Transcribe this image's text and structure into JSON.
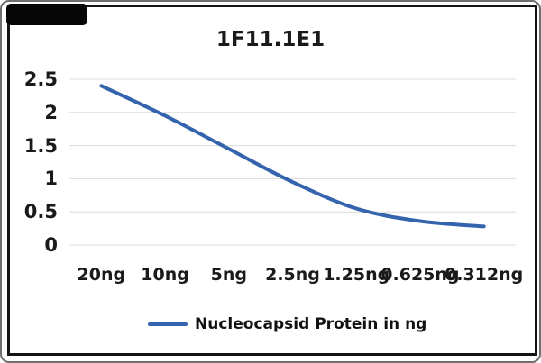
{
  "title": "1F11.1E1",
  "legend": {
    "label": "Nucleocapsid Protein in ng"
  },
  "colors": {
    "line": "#3464ae",
    "grid": "#dcdcdc",
    "text": "#1a1a1a",
    "chart_border": "#141414",
    "outer_frame": "#6f6f6f",
    "redaction": "#060606",
    "background": "#ffffff"
  },
  "chart_data": {
    "type": "line",
    "title": "1F11.1E1",
    "categories": [
      "20ng",
      "10ng",
      "5ng",
      "2.5ng",
      "1.25ng",
      "0.625ng",
      "0.312ng"
    ],
    "series": [
      {
        "name": "Nucleocapsid Protein in ng",
        "values": [
          2.4,
          1.95,
          1.45,
          0.95,
          0.55,
          0.36,
          0.28
        ]
      }
    ],
    "xlabel": "",
    "ylabel": "",
    "ylim": [
      0,
      2.5
    ],
    "ytick_step": 0.5,
    "yticks": [
      "0",
      "0.5",
      "1",
      "1.5",
      "2",
      "2.5"
    ],
    "grid": true,
    "legend_position": "bottom",
    "smoothed": true,
    "marker": "none"
  }
}
